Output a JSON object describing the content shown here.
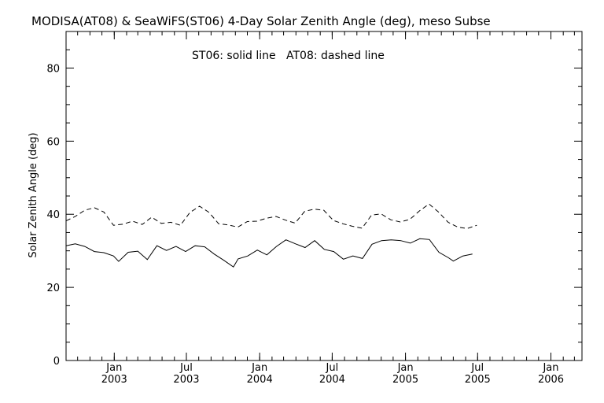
{
  "chart_data": {
    "type": "line",
    "title": "MODISA(AT08) & SeaWiFS(ST06) 4-Day Solar Zenith Angle (deg), meso Subse",
    "annotation": "ST06: solid line   AT08: dashed line",
    "xlabel": "",
    "ylabel": "Solar Zenith Angle (deg)",
    "xlim": [
      "2002-09-02",
      "2006-03-20"
    ],
    "ylim": [
      0,
      90
    ],
    "y_ticks": [
      0,
      20,
      40,
      60,
      80
    ],
    "y_tick_labels": [
      "0",
      "20",
      "40",
      "60",
      "80"
    ],
    "x_ticks": [
      {
        "date": "2003-01-01",
        "label1": "Jan",
        "label2": "2003"
      },
      {
        "date": "2003-07-01",
        "label1": "Jul",
        "label2": "2003"
      },
      {
        "date": "2004-01-01",
        "label1": "Jan",
        "label2": "2004"
      },
      {
        "date": "2004-07-01",
        "label1": "Jul",
        "label2": "2004"
      },
      {
        "date": "2005-01-01",
        "label1": "Jan",
        "label2": "2005"
      },
      {
        "date": "2005-07-01",
        "label1": "Jul",
        "label2": "2005"
      },
      {
        "date": "2006-01-01",
        "label1": "Jan",
        "label2": "2006"
      }
    ],
    "series": [
      {
        "name": "ST06",
        "style": "solid",
        "points": [
          [
            "2002-09-02",
            31.4
          ],
          [
            "2002-09-25",
            31.9
          ],
          [
            "2002-10-19",
            31.2
          ],
          [
            "2002-11-12",
            29.8
          ],
          [
            "2002-12-06",
            29.5
          ],
          [
            "2002-12-30",
            28.6
          ],
          [
            "2003-01-12",
            27.1
          ],
          [
            "2003-02-05",
            29.6
          ],
          [
            "2003-03-01",
            29.9
          ],
          [
            "2003-03-25",
            27.6
          ],
          [
            "2003-04-18",
            31.4
          ],
          [
            "2003-05-12",
            30.1
          ],
          [
            "2003-06-05",
            31.2
          ],
          [
            "2003-06-29",
            29.8
          ],
          [
            "2003-07-23",
            31.4
          ],
          [
            "2003-08-16",
            31.1
          ],
          [
            "2003-09-09",
            29.1
          ],
          [
            "2003-10-03",
            27.4
          ],
          [
            "2003-10-27",
            25.6
          ],
          [
            "2003-11-08",
            27.8
          ],
          [
            "2003-12-02",
            28.6
          ],
          [
            "2003-12-26",
            30.2
          ],
          [
            "2004-01-19",
            28.9
          ],
          [
            "2004-02-12",
            31.2
          ],
          [
            "2004-03-07",
            33.0
          ],
          [
            "2004-03-31",
            31.9
          ],
          [
            "2004-04-24",
            30.9
          ],
          [
            "2004-05-18",
            32.8
          ],
          [
            "2004-06-11",
            30.4
          ],
          [
            "2004-07-05",
            29.8
          ],
          [
            "2004-07-29",
            27.7
          ],
          [
            "2004-08-22",
            28.6
          ],
          [
            "2004-09-15",
            27.9
          ],
          [
            "2004-10-09",
            31.8
          ],
          [
            "2004-11-02",
            32.8
          ],
          [
            "2004-11-26",
            33.0
          ],
          [
            "2004-12-20",
            32.8
          ],
          [
            "2005-01-13",
            32.1
          ],
          [
            "2005-02-06",
            33.3
          ],
          [
            "2005-03-02",
            33.1
          ],
          [
            "2005-03-26",
            29.6
          ],
          [
            "2005-04-19",
            28.1
          ],
          [
            "2005-05-01",
            27.2
          ],
          [
            "2005-05-25",
            28.6
          ],
          [
            "2005-06-18",
            29.1
          ]
        ]
      },
      {
        "name": "AT08",
        "style": "dashed",
        "points": [
          [
            "2002-09-02",
            38.2
          ],
          [
            "2002-09-25",
            39.4
          ],
          [
            "2002-10-19",
            41.1
          ],
          [
            "2002-11-12",
            41.8
          ],
          [
            "2002-12-06",
            40.6
          ],
          [
            "2002-12-30",
            37.0
          ],
          [
            "2003-01-23",
            37.3
          ],
          [
            "2003-02-16",
            38.1
          ],
          [
            "2003-03-12",
            37.2
          ],
          [
            "2003-04-05",
            39.2
          ],
          [
            "2003-04-29",
            37.5
          ],
          [
            "2003-05-23",
            37.8
          ],
          [
            "2003-06-16",
            37.0
          ],
          [
            "2003-07-10",
            40.5
          ],
          [
            "2003-08-03",
            42.2
          ],
          [
            "2003-08-27",
            40.5
          ],
          [
            "2003-09-20",
            37.4
          ],
          [
            "2003-10-14",
            37.1
          ],
          [
            "2003-11-07",
            36.5
          ],
          [
            "2003-12-01",
            38.0
          ],
          [
            "2003-12-25",
            38.1
          ],
          [
            "2004-01-18",
            38.9
          ],
          [
            "2004-02-11",
            39.4
          ],
          [
            "2004-03-06",
            38.4
          ],
          [
            "2004-03-30",
            37.6
          ],
          [
            "2004-04-23",
            40.8
          ],
          [
            "2004-05-17",
            41.4
          ],
          [
            "2004-06-10",
            41.1
          ],
          [
            "2004-07-04",
            38.3
          ],
          [
            "2004-07-28",
            37.4
          ],
          [
            "2004-08-21",
            36.7
          ],
          [
            "2004-09-14",
            36.2
          ],
          [
            "2004-10-08",
            39.8
          ],
          [
            "2004-11-01",
            40.1
          ],
          [
            "2004-11-25",
            38.5
          ],
          [
            "2004-12-19",
            37.9
          ],
          [
            "2005-01-12",
            38.6
          ],
          [
            "2005-02-05",
            40.9
          ],
          [
            "2005-03-01",
            42.8
          ],
          [
            "2005-03-25",
            40.6
          ],
          [
            "2005-04-18",
            37.8
          ],
          [
            "2005-05-12",
            36.5
          ],
          [
            "2005-06-05",
            36.1
          ],
          [
            "2005-06-29",
            37.0
          ]
        ]
      }
    ],
    "grid": false
  }
}
